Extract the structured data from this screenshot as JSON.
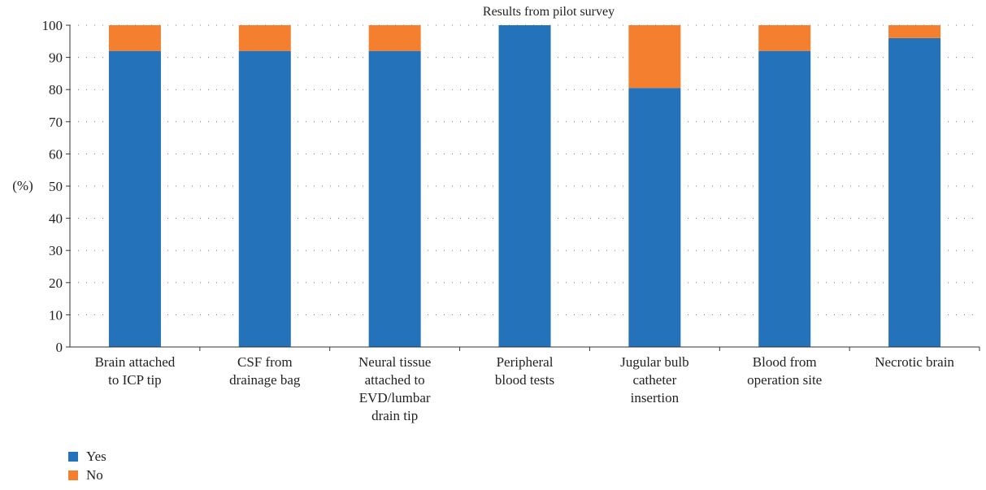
{
  "chart_data": {
    "type": "bar",
    "stacked": true,
    "title": "Results from pilot survey",
    "ylabel": "(%)",
    "ylim": [
      0,
      100
    ],
    "yticks": [
      0,
      10,
      20,
      30,
      40,
      50,
      60,
      70,
      80,
      90,
      100
    ],
    "grid": true,
    "legend_position": "bottom-left",
    "categories": [
      [
        "Brain attached",
        "to ICP tip"
      ],
      [
        "CSF from",
        "drainage bag"
      ],
      [
        "Neural tissue",
        "attached to",
        "EVD/lumbar",
        "drain tip"
      ],
      [
        "Peripheral",
        "blood tests"
      ],
      [
        "Jugular bulb",
        "catheter",
        "insertion"
      ],
      [
        "Blood from",
        "operation site"
      ],
      [
        "Necrotic brain"
      ]
    ],
    "series": [
      {
        "name": "Yes",
        "color": "#2372BA",
        "values": [
          92,
          92,
          92,
          100,
          80.5,
          92,
          96
        ]
      },
      {
        "name": "No",
        "color": "#F47F2F",
        "values": [
          8,
          8,
          8,
          0,
          19.5,
          8,
          4
        ]
      }
    ]
  }
}
